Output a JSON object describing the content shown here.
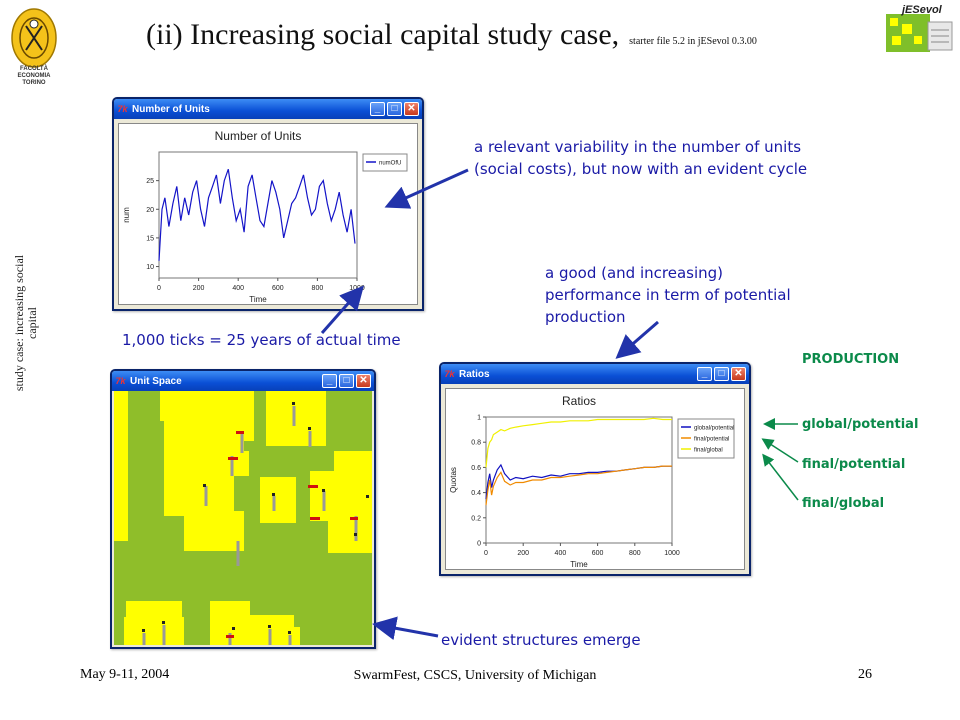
{
  "slide": {
    "title": "(ii) Increasing social capital study case,",
    "title_small": "starter file 5.2 in jESevol 0.3.00",
    "side_label": "study case: increasing social capital",
    "footer_left": "May 9-11, 2004",
    "footer_center": "SwarmFest, CSCS, University of Michigan",
    "footer_right": "26",
    "logo_left": [
      "FACOLTÀ",
      "ECONOMIA",
      "TORINO"
    ],
    "logo_right": "jESevol"
  },
  "annotations": {
    "units_note_line1": "a relevant variability in the number of units",
    "units_note_line2": "(social costs), but now with an evident cycle",
    "ticks_note": "1,000 ticks = 25 years of actual time",
    "perf_note_line1": "a good (and increasing)",
    "perf_note_line2": "performance in term of potential",
    "perf_note_line3": "production",
    "space_note": "evident structures emerge"
  },
  "production": {
    "heading": "PRODUCTION",
    "items": [
      "global/potential",
      "final/potential",
      "final/global"
    ]
  },
  "windows": {
    "units": {
      "title": "Number of Units"
    },
    "space": {
      "title": "Unit Space"
    },
    "ratios": {
      "title": "Ratios"
    }
  },
  "chart_data": [
    {
      "type": "line",
      "title": "Number of Units",
      "xlabel": "Time",
      "ylabel": "num",
      "xlim": [
        0,
        1000
      ],
      "ylim": [
        8,
        30
      ],
      "xticks": [
        0,
        200,
        400,
        600,
        800,
        1000
      ],
      "yticks": [
        10,
        15,
        20,
        25
      ],
      "legend_position": "top-right",
      "series": [
        {
          "name": "numOfU",
          "color": "#1414c8",
          "x": [
            0,
            15,
            30,
            50,
            70,
            90,
            110,
            130,
            150,
            170,
            190,
            210,
            230,
            250,
            270,
            290,
            310,
            330,
            350,
            370,
            390,
            410,
            430,
            450,
            470,
            490,
            510,
            530,
            550,
            570,
            590,
            610,
            630,
            650,
            670,
            690,
            710,
            730,
            750,
            770,
            790,
            810,
            830,
            850,
            870,
            890,
            910,
            930,
            950,
            970,
            990
          ],
          "values": [
            11,
            20,
            22,
            17,
            21,
            24,
            18,
            22,
            19,
            23,
            25,
            20,
            17,
            22,
            24,
            26,
            21,
            25,
            27,
            22,
            18,
            20,
            16,
            24,
            26,
            22,
            18,
            17,
            21,
            25,
            23,
            20,
            15,
            18,
            21,
            22,
            24,
            26,
            22,
            19,
            20,
            24,
            25,
            21,
            18,
            20,
            23,
            19,
            16,
            20,
            14
          ]
        }
      ]
    },
    {
      "type": "line",
      "title": "Ratios",
      "xlabel": "Time",
      "ylabel": "Quotas",
      "xlim": [
        0,
        1000
      ],
      "ylim": [
        0,
        1
      ],
      "xticks": [
        0,
        200,
        400,
        600,
        800,
        1000
      ],
      "yticks": [
        0,
        0.2,
        0.4,
        0.6,
        0.8,
        1
      ],
      "legend_position": "top-right",
      "x": [
        0,
        10,
        20,
        30,
        40,
        60,
        80,
        100,
        130,
        160,
        200,
        250,
        300,
        350,
        400,
        450,
        500,
        550,
        600,
        650,
        700,
        750,
        800,
        850,
        900,
        950,
        1000
      ],
      "series": [
        {
          "name": "global/potential",
          "color": "#1010c0",
          "values": [
            0.35,
            0.48,
            0.55,
            0.44,
            0.5,
            0.58,
            0.62,
            0.55,
            0.5,
            0.52,
            0.51,
            0.53,
            0.52,
            0.54,
            0.53,
            0.55,
            0.55,
            0.56,
            0.56,
            0.57,
            0.57,
            0.58,
            0.59,
            0.6,
            0.6,
            0.61,
            0.61
          ]
        },
        {
          "name": "final/potential",
          "color": "#f08a00",
          "values": [
            0.3,
            0.42,
            0.5,
            0.38,
            0.45,
            0.52,
            0.56,
            0.49,
            0.46,
            0.48,
            0.48,
            0.5,
            0.5,
            0.52,
            0.52,
            0.53,
            0.54,
            0.55,
            0.55,
            0.56,
            0.57,
            0.58,
            0.59,
            0.6,
            0.6,
            0.61,
            0.61
          ]
        },
        {
          "name": "final/global",
          "color": "#f0f000",
          "values": [
            0.6,
            0.75,
            0.8,
            0.82,
            0.86,
            0.88,
            0.9,
            0.89,
            0.91,
            0.92,
            0.93,
            0.94,
            0.95,
            0.96,
            0.96,
            0.97,
            0.97,
            0.97,
            0.98,
            0.98,
            0.98,
            0.98,
            0.98,
            0.98,
            0.99,
            0.98,
            0.98
          ]
        }
      ]
    }
  ],
  "colors": {
    "annotation_text": "#1a1aa6",
    "production_text": "#0b8a4a",
    "space_background": "#8fbe2a",
    "space_blocks": "#ffff00"
  }
}
